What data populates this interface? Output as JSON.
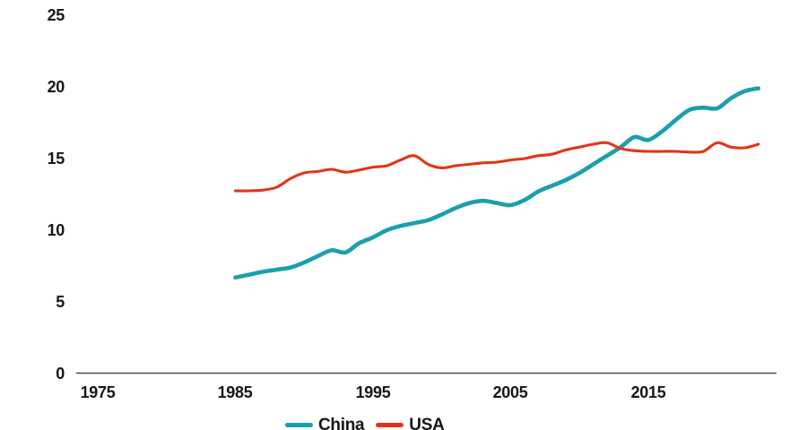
{
  "chart_data": {
    "type": "line",
    "title": "",
    "xlabel": "",
    "ylabel": "",
    "grid": false,
    "legend_position": "bottom-center",
    "x_range": [
      1973.5,
      2024.5
    ],
    "ylim": [
      0,
      25
    ],
    "x_ticks": [
      "1975",
      "1985",
      "1995",
      "2005",
      "2015"
    ],
    "y_ticks": [
      "25",
      "20",
      "15",
      "10",
      "5",
      "0"
    ],
    "x": [
      1985,
      1986,
      1987,
      1988,
      1989,
      1990,
      1991,
      1992,
      1993,
      1994,
      1995,
      1996,
      1997,
      1998,
      1999,
      2000,
      2001,
      2002,
      2003,
      2004,
      2005,
      2006,
      2007,
      2008,
      2009,
      2010,
      2011,
      2012,
      2013,
      2014,
      2015,
      2016,
      2017,
      2018,
      2019,
      2020,
      2021,
      2022,
      2023
    ],
    "series": [
      {
        "name": "China",
        "color": "#1b9fab",
        "values": [
          6.7,
          6.9,
          7.1,
          7.25,
          7.4,
          7.75,
          8.2,
          8.6,
          8.45,
          9.1,
          9.5,
          10.0,
          10.3,
          10.5,
          10.7,
          11.1,
          11.55,
          11.9,
          12.05,
          11.9,
          11.75,
          12.1,
          12.7,
          13.1,
          13.5,
          14.0,
          14.6,
          15.2,
          15.8,
          16.5,
          16.3,
          16.9,
          17.7,
          18.4,
          18.55,
          18.5,
          19.2,
          19.7,
          19.9
        ]
      },
      {
        "name": "USA",
        "color": "#e1351a",
        "values": [
          12.75,
          12.75,
          12.8,
          13.0,
          13.6,
          14.0,
          14.1,
          14.25,
          14.05,
          14.2,
          14.4,
          14.5,
          14.9,
          15.2,
          14.6,
          14.35,
          14.5,
          14.6,
          14.7,
          14.75,
          14.9,
          15.0,
          15.2,
          15.3,
          15.6,
          15.8,
          16.0,
          16.1,
          15.7,
          15.55,
          15.5,
          15.5,
          15.5,
          15.45,
          15.5,
          16.1,
          15.8,
          15.75,
          16.0
        ]
      }
    ]
  },
  "colors": {
    "background": "#ffffff",
    "axis_line": "#4c4c4c",
    "tick_text": "#161616"
  }
}
